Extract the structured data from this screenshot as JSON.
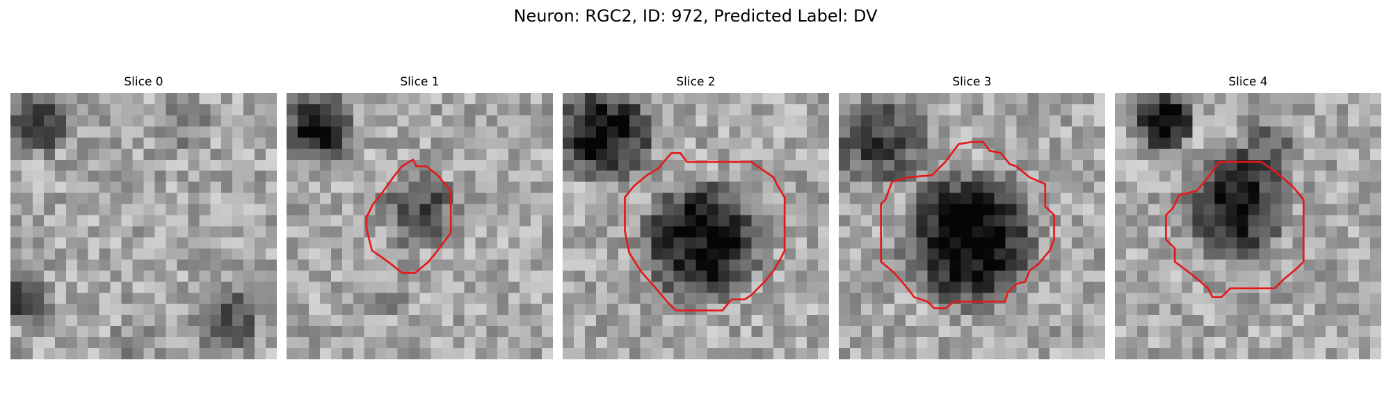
{
  "figure": {
    "title": "Neuron: RGC2, ID: 972, Predicted Label: DV",
    "contour_color": "#e31a1c",
    "colormap": "gray",
    "grid_size": 24
  },
  "panels": [
    {
      "title": "Slice 0",
      "has_contour": false,
      "dark_blobs": [
        {
          "cx": 2.5,
          "cy": 2.8,
          "r": 3.2,
          "s": 0.45
        },
        {
          "cx": 1.5,
          "cy": 18.5,
          "r": 2.6,
          "s": 0.5
        },
        {
          "cx": 19.5,
          "cy": 20.5,
          "r": 4.0,
          "s": 0.3
        },
        {
          "cx": 12.0,
          "cy": 22.0,
          "r": 3.0,
          "s": 0.15
        },
        {
          "cx": 16.0,
          "cy": 3.0,
          "r": 3.0,
          "s": 0.15
        }
      ],
      "contour": []
    },
    {
      "title": "Slice 1",
      "has_contour": true,
      "dark_blobs": [
        {
          "cx": 2.8,
          "cy": 3.2,
          "r": 4.0,
          "s": 0.55
        },
        {
          "cx": 12.0,
          "cy": 10.5,
          "r": 4.0,
          "s": 0.38
        },
        {
          "cx": 9.5,
          "cy": 18.0,
          "r": 2.5,
          "s": 0.1
        }
      ],
      "contour": [
        [
          10.4,
          6.6
        ],
        [
          11.4,
          6.0
        ],
        [
          11.7,
          6.6
        ],
        [
          12.6,
          6.6
        ],
        [
          13.6,
          7.4
        ],
        [
          14.8,
          8.8
        ],
        [
          14.8,
          12.6
        ],
        [
          13.6,
          14.2
        ],
        [
          12.8,
          15.2
        ],
        [
          11.6,
          16.2
        ],
        [
          10.4,
          16.2
        ],
        [
          9.4,
          15.4
        ],
        [
          8.3,
          14.6
        ],
        [
          7.7,
          14.2
        ],
        [
          7.2,
          12.2
        ],
        [
          7.2,
          11.2
        ],
        [
          7.8,
          10.0
        ],
        [
          8.6,
          9.0
        ],
        [
          9.6,
          7.6
        ]
      ]
    },
    {
      "title": "Slice 2",
      "has_contour": true,
      "dark_blobs": [
        {
          "cx": 3.8,
          "cy": 3.8,
          "r": 5.2,
          "s": 0.6
        },
        {
          "cx": 12.6,
          "cy": 13.4,
          "r": 6.4,
          "s": 0.62
        }
      ],
      "contour": [
        [
          8.6,
          6.8
        ],
        [
          9.8,
          5.4
        ],
        [
          10.6,
          5.4
        ],
        [
          11.2,
          6.2
        ],
        [
          17.0,
          6.2
        ],
        [
          19.0,
          7.6
        ],
        [
          19.4,
          8.4
        ],
        [
          20.0,
          9.4
        ],
        [
          20.0,
          14.2
        ],
        [
          19.6,
          15.0
        ],
        [
          19.0,
          16.0
        ],
        [
          18.2,
          17.0
        ],
        [
          17.0,
          18.2
        ],
        [
          16.4,
          18.6
        ],
        [
          15.2,
          18.6
        ],
        [
          14.4,
          19.6
        ],
        [
          12.6,
          19.6
        ],
        [
          11.6,
          19.6
        ],
        [
          10.2,
          19.6
        ],
        [
          9.4,
          18.8
        ],
        [
          8.4,
          17.6
        ],
        [
          7.0,
          16.0
        ],
        [
          6.0,
          14.4
        ],
        [
          5.6,
          12.4
        ],
        [
          5.6,
          9.4
        ],
        [
          6.4,
          8.4
        ],
        [
          7.6,
          7.4
        ]
      ]
    },
    {
      "title": "Slice 3",
      "has_contour": true,
      "dark_blobs": [
        {
          "cx": 3.6,
          "cy": 4.2,
          "r": 5.0,
          "s": 0.42
        },
        {
          "cx": 11.8,
          "cy": 13.2,
          "r": 7.2,
          "s": 0.66
        }
      ],
      "contour": [
        [
          9.6,
          6.2
        ],
        [
          10.8,
          4.6
        ],
        [
          12.0,
          4.4
        ],
        [
          13.0,
          4.4
        ],
        [
          13.6,
          5.2
        ],
        [
          14.6,
          5.4
        ],
        [
          15.4,
          6.4
        ],
        [
          16.0,
          6.6
        ],
        [
          17.2,
          7.6
        ],
        [
          18.6,
          8.2
        ],
        [
          18.6,
          10.2
        ],
        [
          19.4,
          11.0
        ],
        [
          19.4,
          13.2
        ],
        [
          19.0,
          14.2
        ],
        [
          18.0,
          15.4
        ],
        [
          17.2,
          16.0
        ],
        [
          16.8,
          17.0
        ],
        [
          16.0,
          17.2
        ],
        [
          15.2,
          18.0
        ],
        [
          15.0,
          18.8
        ],
        [
          14.4,
          18.8
        ],
        [
          10.4,
          18.8
        ],
        [
          9.6,
          19.4
        ],
        [
          8.6,
          19.4
        ],
        [
          8.0,
          18.8
        ],
        [
          6.8,
          18.4
        ],
        [
          6.2,
          17.6
        ],
        [
          5.0,
          16.2
        ],
        [
          3.8,
          15.2
        ],
        [
          3.8,
          10.0
        ],
        [
          4.2,
          9.6
        ],
        [
          4.8,
          8.0
        ],
        [
          6.2,
          7.6
        ],
        [
          8.4,
          7.4
        ]
      ]
    },
    {
      "title": "Slice 4",
      "has_contour": true,
      "dark_blobs": [
        {
          "cx": 4.4,
          "cy": 2.4,
          "r": 3.2,
          "s": 0.7
        },
        {
          "cx": 10.8,
          "cy": 10.2,
          "r": 5.6,
          "s": 0.58
        },
        {
          "cx": 13.5,
          "cy": 5.0,
          "r": 3.5,
          "s": 0.25
        }
      ],
      "contour": [
        [
          7.4,
          8.8
        ],
        [
          8.4,
          7.6
        ],
        [
          9.4,
          6.2
        ],
        [
          13.2,
          6.2
        ],
        [
          14.6,
          7.2
        ],
        [
          16.0,
          8.4
        ],
        [
          17.0,
          9.6
        ],
        [
          17.0,
          15.2
        ],
        [
          16.4,
          15.8
        ],
        [
          15.2,
          16.8
        ],
        [
          14.4,
          17.6
        ],
        [
          10.4,
          17.6
        ],
        [
          9.6,
          18.4
        ],
        [
          8.8,
          18.4
        ],
        [
          8.4,
          17.6
        ],
        [
          7.0,
          16.4
        ],
        [
          5.4,
          15.2
        ],
        [
          5.4,
          14.0
        ],
        [
          4.6,
          13.2
        ],
        [
          4.6,
          11.0
        ],
        [
          5.2,
          10.4
        ],
        [
          5.8,
          9.2
        ]
      ]
    }
  ]
}
